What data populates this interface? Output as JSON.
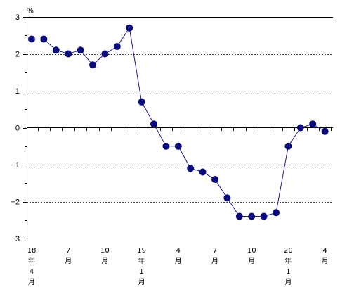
{
  "chart_data": {
    "type": "line",
    "unit_label": "%",
    "ylim": [
      -3,
      3
    ],
    "yticks": [
      3,
      2,
      1,
      0,
      -1,
      -2,
      -3
    ],
    "ytick_labels": [
      "3",
      "2",
      "1",
      "0",
      "−1",
      "−2",
      "−3"
    ],
    "grid": "dashed horizontal at ±1, ±2",
    "x": [
      "2018-04",
      "2018-05",
      "2018-06",
      "2018-07",
      "2018-08",
      "2018-09",
      "2018-10",
      "2018-11",
      "2018-12",
      "2019-01",
      "2019-02",
      "2019-03",
      "2019-04",
      "2019-05",
      "2019-06",
      "2019-07",
      "2019-08",
      "2019-09",
      "2019-10",
      "2019-11",
      "2019-12",
      "2020-01",
      "2020-02",
      "2020-03",
      "2020-04"
    ],
    "series": [
      {
        "values": [
          2.4,
          2.4,
          2.1,
          2.0,
          2.1,
          1.7,
          2.0,
          2.2,
          2.7,
          0.7,
          0.1,
          -0.5,
          -0.5,
          -1.1,
          -1.2,
          -1.4,
          -1.9,
          -2.4,
          -2.4,
          -2.4,
          -2.3,
          -0.5,
          0.0,
          0.1,
          -0.1
        ]
      }
    ],
    "x_tick_labels": [
      {
        "index": 0,
        "lines": [
          "18",
          "年",
          "4",
          "月"
        ]
      },
      {
        "index": 3,
        "lines": [
          "7",
          "月"
        ]
      },
      {
        "index": 6,
        "lines": [
          "10",
          "月"
        ]
      },
      {
        "index": 9,
        "lines": [
          "19",
          "年",
          "1",
          "月"
        ]
      },
      {
        "index": 12,
        "lines": [
          "4",
          "月"
        ]
      },
      {
        "index": 15,
        "lines": [
          "7",
          "月"
        ]
      },
      {
        "index": 18,
        "lines": [
          "10",
          "月"
        ]
      },
      {
        "index": 21,
        "lines": [
          "20",
          "年",
          "1",
          "月"
        ]
      },
      {
        "index": 24,
        "lines": [
          "4",
          "月"
        ]
      }
    ],
    "colors": {
      "line": "#1c1c8c",
      "marker": "#0a0a7a",
      "axis": "#000000",
      "grid": "#000000"
    }
  }
}
